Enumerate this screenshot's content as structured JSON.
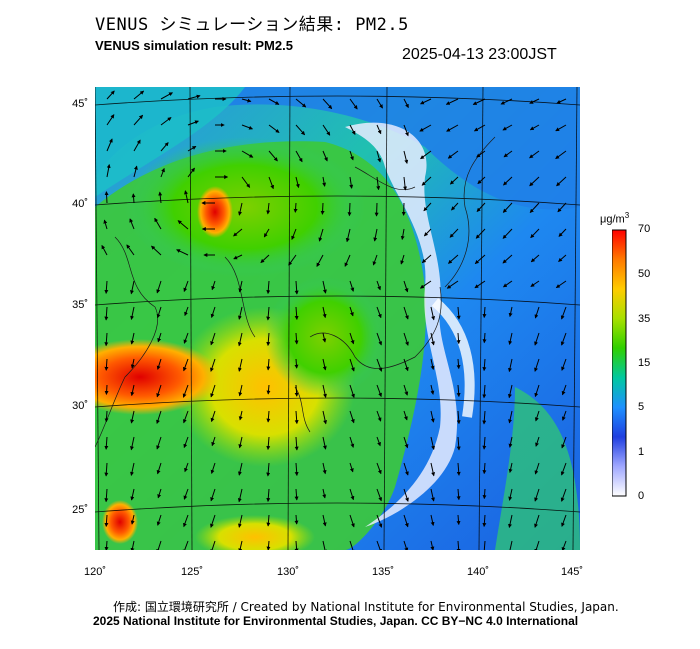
{
  "header": {
    "title_jp": "VENUS シミュレーション結果: PM2.5",
    "title_en": "VENUS simulation result: PM2.5",
    "timestamp": "2025-04-13 23:00JST"
  },
  "map": {
    "variable": "PM2.5",
    "region": "East Asia / Japan",
    "lat_ticks": [
      "45˚",
      "40˚",
      "35˚",
      "30˚",
      "25˚"
    ],
    "lon_ticks": [
      "120˚",
      "125˚",
      "130˚",
      "135˚",
      "140˚",
      "145˚"
    ],
    "wind_vectors_shown": true
  },
  "colorbar": {
    "unit_prefix": "μg/m",
    "unit_sup": "3",
    "ticks": [
      "70",
      "50",
      "35",
      "15",
      "5",
      "1",
      "0"
    ],
    "colors": [
      "#ff0000",
      "#ff7a00",
      "#ffcc00",
      "#a8e000",
      "#30d000",
      "#00c8a0",
      "#1e90ff",
      "#1f3fe0",
      "#a0a8ff",
      "#ffffff"
    ]
  },
  "footer": {
    "credit_jp": "作成: 国立環境研究所 / Created by National Institute for Environmental Studies, Japan.",
    "copyright": "2025 National Institute for Environmental Studies, Japan. CC BY−NC 4.0 International"
  }
}
